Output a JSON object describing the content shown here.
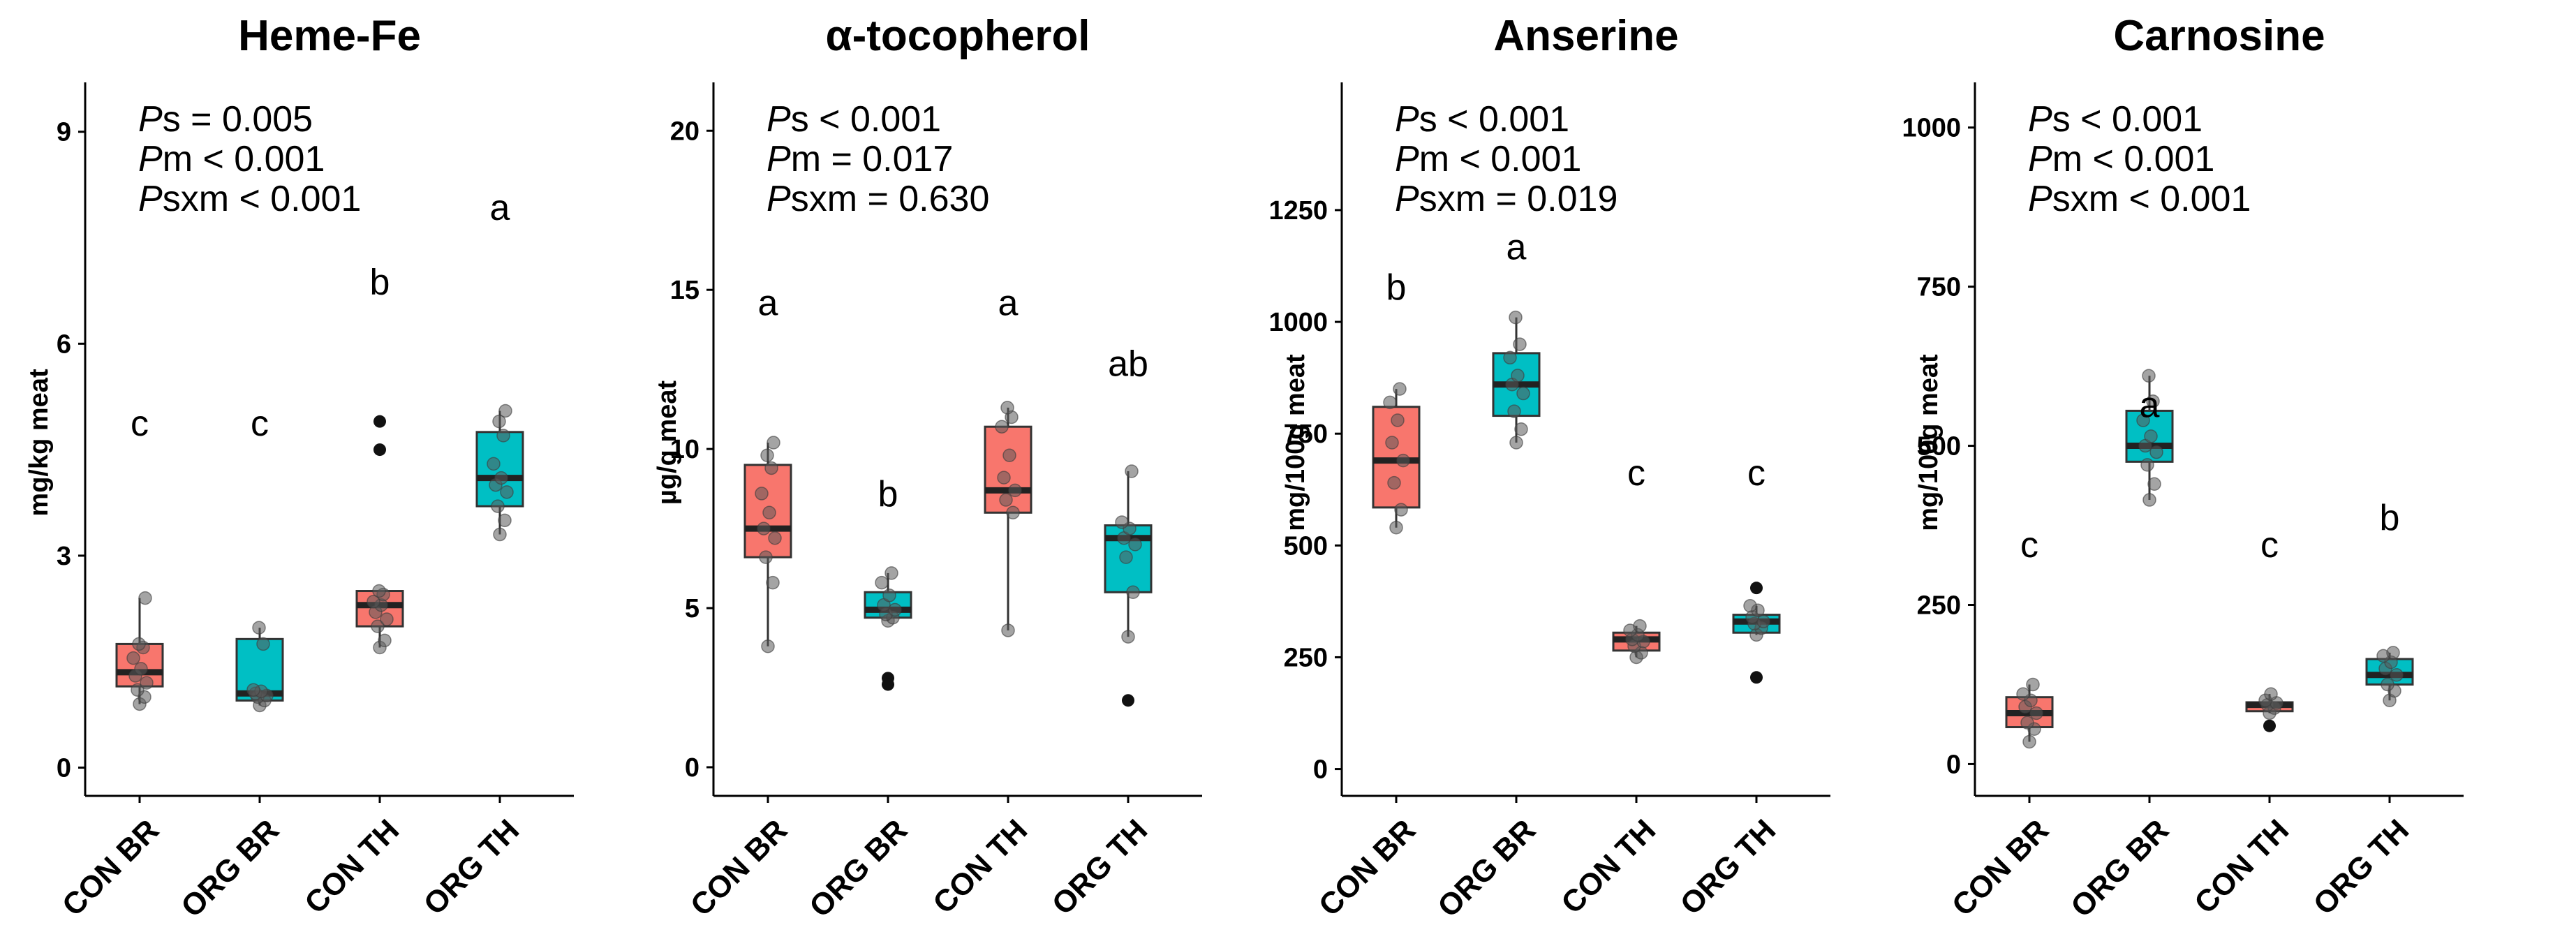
{
  "chart_data": [
    {
      "type": "box",
      "title": "Heme-Fe",
      "ylabel": "mg/kg meat",
      "ylim": [
        -0.4,
        9.6
      ],
      "yticks": [
        0,
        3,
        6,
        9
      ],
      "categories": [
        "CON BR",
        "ORG BR",
        "CON TH",
        "ORG TH"
      ],
      "colors": [
        "#F8766D",
        "#00BFC4",
        "#F8766D",
        "#00BFC4"
      ],
      "stats": [
        {
          "prefix": "P",
          "sub": "s",
          "op": "=",
          "value": "0.005"
        },
        {
          "prefix": "P",
          "sub": "m",
          "op": "<",
          "value": "0.001"
        },
        {
          "prefix": "P",
          "sub": "sxm",
          "op": "<",
          "value": "0.001"
        }
      ],
      "boxes": [
        {
          "min": 0.9,
          "q1": 1.15,
          "median": 1.35,
          "q3": 1.75,
          "max": 2.4,
          "outliers": [],
          "points": [
            0.9,
            1.0,
            1.1,
            1.2,
            1.3,
            1.4,
            1.55,
            1.7,
            1.75,
            2.4
          ],
          "letter": "c",
          "letter_y": 4.7
        },
        {
          "min": 0.88,
          "q1": 0.95,
          "median": 1.05,
          "q3": 1.82,
          "max": 1.98,
          "outliers": [],
          "points": [
            0.88,
            0.95,
            1.0,
            1.02,
            1.05,
            1.08,
            1.1,
            1.75,
            1.98
          ],
          "letter": "c",
          "letter_y": 4.7
        },
        {
          "min": 1.7,
          "q1": 2.0,
          "median": 2.3,
          "q3": 2.5,
          "max": 2.5,
          "outliers": [
            4.9,
            4.5
          ],
          "points": [
            1.7,
            1.8,
            2.0,
            2.1,
            2.2,
            2.3,
            2.35,
            2.45,
            2.5
          ],
          "letter": "b",
          "letter_y": 6.7
        },
        {
          "min": 3.3,
          "q1": 3.7,
          "median": 4.1,
          "q3": 4.75,
          "max": 5.05,
          "outliers": [],
          "points": [
            3.3,
            3.5,
            3.7,
            3.9,
            4.0,
            4.1,
            4.3,
            4.7,
            4.9,
            5.05
          ],
          "letter": "a",
          "letter_y": 7.75
        }
      ]
    },
    {
      "type": "box",
      "title": "α-tocopherol",
      "ylabel": "µg/g meat",
      "ylim": [
        -0.9,
        21.3
      ],
      "yticks": [
        0,
        5,
        10,
        15,
        20
      ],
      "categories": [
        "CON BR",
        "ORG BR",
        "CON TH",
        "ORG TH"
      ],
      "colors": [
        "#F8766D",
        "#00BFC4",
        "#F8766D",
        "#00BFC4"
      ],
      "stats": [
        {
          "prefix": "P",
          "sub": "s",
          "op": "<",
          "value": "0.001"
        },
        {
          "prefix": "P",
          "sub": "m",
          "op": "=",
          "value": "0.017"
        },
        {
          "prefix": "P",
          "sub": "sxm",
          "op": "=",
          "value": "0.630"
        }
      ],
      "boxes": [
        {
          "min": 3.8,
          "q1": 6.6,
          "median": 7.5,
          "q3": 9.5,
          "max": 10.2,
          "outliers": [],
          "points": [
            3.8,
            5.8,
            6.6,
            7.2,
            7.5,
            8.0,
            8.6,
            9.4,
            9.8,
            10.2
          ],
          "letter": "a",
          "letter_y": 14.2
        },
        {
          "min": 4.6,
          "q1": 4.7,
          "median": 4.95,
          "q3": 5.5,
          "max": 6.1,
          "outliers": [
            2.8,
            2.6
          ],
          "points": [
            4.6,
            4.7,
            4.8,
            4.95,
            5.1,
            5.4,
            5.8,
            6.1
          ],
          "letter": "b",
          "letter_y": 8.2
        },
        {
          "min": 4.3,
          "q1": 8.0,
          "median": 8.7,
          "q3": 10.7,
          "max": 11.3,
          "outliers": [],
          "points": [
            4.3,
            8.0,
            8.4,
            8.7,
            9.1,
            9.8,
            10.7,
            11.0,
            11.3
          ],
          "letter": "a",
          "letter_y": 14.2
        },
        {
          "min": 4.1,
          "q1": 5.5,
          "median": 7.2,
          "q3": 7.6,
          "max": 9.3,
          "outliers": [
            2.1
          ],
          "points": [
            4.1,
            5.5,
            6.6,
            7.0,
            7.2,
            7.5,
            7.7,
            9.3
          ],
          "letter": "ab",
          "letter_y": 12.3
        }
      ]
    },
    {
      "type": "box",
      "title": "Anserine",
      "ylabel": "mg/100g meat",
      "ylim": [
        -60,
        1520
      ],
      "yticks": [
        0,
        250,
        500,
        750,
        1000,
        1250
      ],
      "categories": [
        "CON BR",
        "ORG BR",
        "CON TH",
        "ORG TH"
      ],
      "colors": [
        "#F8766D",
        "#00BFC4",
        "#F8766D",
        "#00BFC4"
      ],
      "stats": [
        {
          "prefix": "P",
          "sub": "s",
          "op": "<",
          "value": "0.001"
        },
        {
          "prefix": "P",
          "sub": "m",
          "op": "<",
          "value": "0.001"
        },
        {
          "prefix": "P",
          "sub": "sxm",
          "op": "=",
          "value": "0.019"
        }
      ],
      "boxes": [
        {
          "min": 540,
          "q1": 585,
          "median": 690,
          "q3": 810,
          "max": 850,
          "outliers": [],
          "points": [
            540,
            580,
            640,
            690,
            730,
            780,
            820,
            850
          ],
          "letter": "b",
          "letter_y": 1050
        },
        {
          "min": 730,
          "q1": 790,
          "median": 860,
          "q3": 930,
          "max": 1010,
          "outliers": [],
          "points": [
            730,
            760,
            800,
            840,
            860,
            880,
            920,
            950,
            1010
          ],
          "letter": "a",
          "letter_y": 1140
        },
        {
          "min": 250,
          "q1": 265,
          "median": 290,
          "q3": 305,
          "max": 320,
          "outliers": [],
          "points": [
            250,
            260,
            275,
            285,
            290,
            300,
            310,
            320
          ],
          "letter": "c",
          "letter_y": 635
        },
        {
          "min": 300,
          "q1": 305,
          "median": 330,
          "q3": 345,
          "max": 365,
          "outliers": [
            405,
            205
          ],
          "points": [
            300,
            315,
            325,
            330,
            340,
            355,
            365
          ],
          "letter": "c",
          "letter_y": 635
        }
      ]
    },
    {
      "type": "box",
      "title": "Carnosine",
      "ylabel": "mg/100g meat",
      "ylim": [
        -50,
        1060
      ],
      "yticks": [
        0,
        250,
        500,
        750,
        1000
      ],
      "categories": [
        "CON BR",
        "ORG BR",
        "CON TH",
        "ORG TH"
      ],
      "colors": [
        "#F8766D",
        "#00BFC4",
        "#F8766D",
        "#00BFC4"
      ],
      "stats": [
        {
          "prefix": "P",
          "sub": "s",
          "op": "<",
          "value": "0.001"
        },
        {
          "prefix": "P",
          "sub": "m",
          "op": "<",
          "value": "0.001"
        },
        {
          "prefix": "P",
          "sub": "sxm",
          "op": "<",
          "value": "0.001"
        }
      ],
      "boxes": [
        {
          "min": 35,
          "q1": 58,
          "median": 80,
          "q3": 105,
          "max": 125,
          "outliers": [],
          "points": [
            35,
            55,
            65,
            80,
            90,
            100,
            110,
            125
          ],
          "letter": "c",
          "letter_y": 325
        },
        {
          "min": 415,
          "q1": 475,
          "median": 500,
          "q3": 555,
          "max": 610,
          "outliers": [],
          "points": [
            415,
            440,
            470,
            490,
            500,
            515,
            540,
            570,
            610
          ],
          "letter": "a",
          "letter_y": 545
        },
        {
          "min": 80,
          "q1": 83,
          "median": 93,
          "q3": 97,
          "max": 110,
          "outliers": [
            60
          ],
          "points": [
            80,
            88,
            93,
            96,
            100,
            110
          ],
          "letter": "c",
          "letter_y": 325
        },
        {
          "min": 100,
          "q1": 125,
          "median": 140,
          "q3": 165,
          "max": 175,
          "outliers": [],
          "points": [
            100,
            115,
            125,
            140,
            150,
            160,
            170,
            175
          ],
          "letter": "b",
          "letter_y": 368
        }
      ]
    }
  ]
}
